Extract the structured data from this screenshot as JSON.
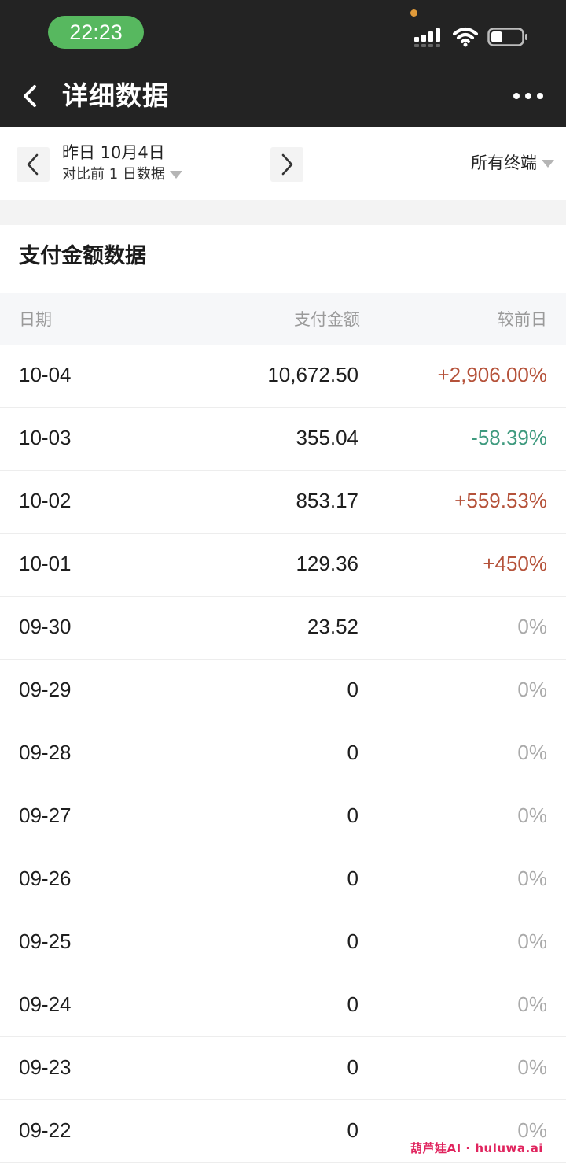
{
  "status_bar": {
    "time": "22:23",
    "time_pill_color": "#57b85f"
  },
  "nav": {
    "title": "详细数据",
    "back_icon": "chevron-left-icon",
    "more_icon": "more-dots-icon"
  },
  "filter": {
    "date_label": "昨日 10月4日",
    "compare_label": "对比前 1 日数据",
    "terminal_label": "所有终端"
  },
  "section": {
    "title": "支付金额数据"
  },
  "table": {
    "headers": {
      "date": "日期",
      "amount": "支付金额",
      "compare": "较前日"
    },
    "rows": [
      {
        "date": "10-04",
        "amount": "10,672.50",
        "compare": "+2,906.00%",
        "trend": "up"
      },
      {
        "date": "10-03",
        "amount": "355.04",
        "compare": "-58.39%",
        "trend": "down"
      },
      {
        "date": "10-02",
        "amount": "853.17",
        "compare": "+559.53%",
        "trend": "up"
      },
      {
        "date": "10-01",
        "amount": "129.36",
        "compare": "+450%",
        "trend": "up"
      },
      {
        "date": "09-30",
        "amount": "23.52",
        "compare": "0%",
        "trend": "flat"
      },
      {
        "date": "09-29",
        "amount": "0",
        "compare": "0%",
        "trend": "flat"
      },
      {
        "date": "09-28",
        "amount": "0",
        "compare": "0%",
        "trend": "flat"
      },
      {
        "date": "09-27",
        "amount": "0",
        "compare": "0%",
        "trend": "flat"
      },
      {
        "date": "09-26",
        "amount": "0",
        "compare": "0%",
        "trend": "flat"
      },
      {
        "date": "09-25",
        "amount": "0",
        "compare": "0%",
        "trend": "flat"
      },
      {
        "date": "09-24",
        "amount": "0",
        "compare": "0%",
        "trend": "flat"
      },
      {
        "date": "09-23",
        "amount": "0",
        "compare": "0%",
        "trend": "flat"
      },
      {
        "date": "09-22",
        "amount": "0",
        "compare": "0%",
        "trend": "flat"
      }
    ]
  },
  "colors": {
    "up": "#b5523a",
    "down": "#3e9a7e",
    "flat": "#aaaaaa",
    "header_bg": "#232323"
  },
  "watermark": {
    "text": "葫芦娃AI · huluwa.ai"
  }
}
